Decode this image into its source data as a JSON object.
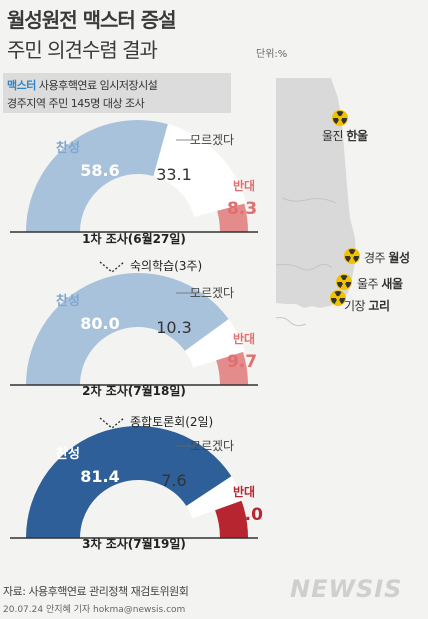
{
  "header": {
    "title_line1": "월성원전 맥스터 증설",
    "title_line2": "주민 의견수렴 결과",
    "unit": "단위:%"
  },
  "info_box": {
    "highlight": "맥스터",
    "line1_rest": " 사용후핵연료 임시저장시설",
    "line2": "경주지역 주민 145명 대상 조사"
  },
  "colors": {
    "approve_light": "#a9c2dc",
    "approve_dark": "#2e5f99",
    "oppose_light": "#e48b8b",
    "oppose_dark": "#b72530",
    "dontknow": "#ffffff",
    "track": "#dcdcdc",
    "oppose_text_light": "#e07070",
    "oppose_text_dark": "#b72530"
  },
  "steps": [
    "숙의학습(3주)",
    "종합토론회(2일)"
  ],
  "chart_data": [
    {
      "type": "pie",
      "caption": "1차 조사(6월27일)",
      "categories": [
        "찬성",
        "모르겠다",
        "반대"
      ],
      "values": [
        58.6,
        33.1,
        8.3
      ],
      "value_labels": [
        "58.6",
        "33.1",
        "8.3"
      ]
    },
    {
      "type": "pie",
      "caption": "2차 조사(7월18일)",
      "categories": [
        "찬성",
        "모르겠다",
        "반대"
      ],
      "values": [
        80.0,
        10.3,
        9.7
      ],
      "value_labels": [
        "80.0",
        "10.3",
        "9.7"
      ]
    },
    {
      "type": "pie",
      "caption": "3차 조사(7월19일)",
      "categories": [
        "찬성",
        "모르겠다",
        "반대"
      ],
      "values": [
        81.4,
        7.6,
        11.0
      ],
      "value_labels": [
        "81.4",
        "7.6",
        "11.0"
      ]
    }
  ],
  "map": {
    "plants": [
      {
        "region": "울진",
        "name": "한울"
      },
      {
        "region": "경주",
        "name": "월성"
      },
      {
        "region": "울주",
        "name": "새울"
      },
      {
        "region": "기장",
        "name": "고리"
      }
    ]
  },
  "footer": {
    "source": "자료: 사용후핵연료 관리정책 재검토위원회",
    "credit": "20.07.24 안지혜 기자 hokma@newsis.com",
    "logo": "NEWSIS"
  }
}
